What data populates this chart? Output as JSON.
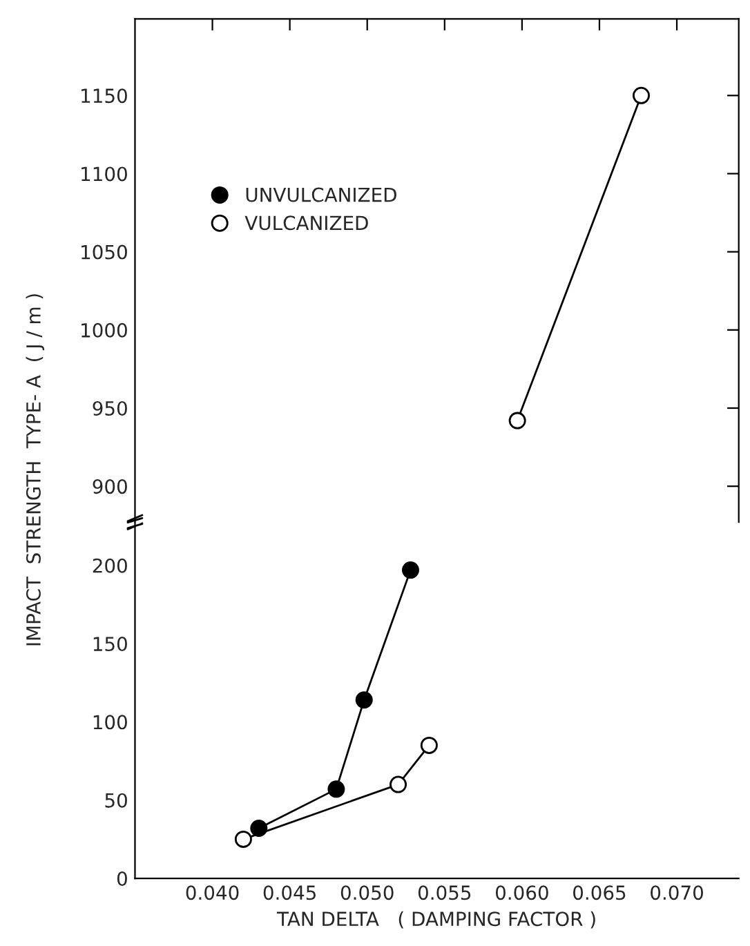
{
  "chart_data": [
    {
      "type": "line",
      "xlim": [
        0.035,
        0.074
      ],
      "xticks": [
        {
          "value": 0.04,
          "label": null
        },
        {
          "value": 0.045,
          "label": null
        },
        {
          "value": 0.05,
          "label": null
        },
        {
          "value": 0.055,
          "label": null
        },
        {
          "value": 0.06,
          "label": null
        },
        {
          "value": 0.065,
          "label": null
        },
        {
          "value": 0.07,
          "label": null
        }
      ],
      "ylim": [
        877,
        1199
      ],
      "yticks": [
        900,
        950,
        1000,
        1050,
        1100,
        1150
      ],
      "tick_labels": "y",
      "legend": "top left",
      "marker": "circle",
      "grid": false,
      "series": [
        {
          "name": "UNVULCANIZED",
          "color": "#000000"
        },
        {
          "name": "VULCANIZED",
          "color": "#ffffff",
          "x": [
            0.0597,
            0.0677
          ],
          "values": [
            942,
            1150
          ]
        }
      ]
    },
    {
      "type": "line",
      "xlabel": "TAN DELTA   ( DAMPING FACTOR )",
      "ylabel": "IMPACT  STRENGTH  TYPE- A  ( J / m )",
      "xlim": [
        0.035,
        0.074
      ],
      "xticks": [
        {
          "value": 0.04,
          "label": "0.040"
        },
        0.045,
        {
          "value": 0.05,
          "label": "0.050"
        },
        0.055,
        {
          "value": 0.06,
          "label": "0.060"
        },
        0.065,
        {
          "value": 0.07,
          "label": "0.070"
        }
      ],
      "ylim": [
        0,
        227
      ],
      "yticks": [
        0,
        50,
        100,
        150,
        200
      ],
      "marker": "circle",
      "grid": false,
      "series": [
        {
          "color": "#000000",
          "x": [
            0.043,
            0.048,
            0.0498,
            0.0528
          ],
          "values": [
            32,
            57,
            114,
            197
          ]
        },
        {
          "color": "#ffffff",
          "x": [
            0.042,
            0.052,
            0.054
          ],
          "values": [
            25,
            60,
            85
          ]
        }
      ]
    }
  ]
}
